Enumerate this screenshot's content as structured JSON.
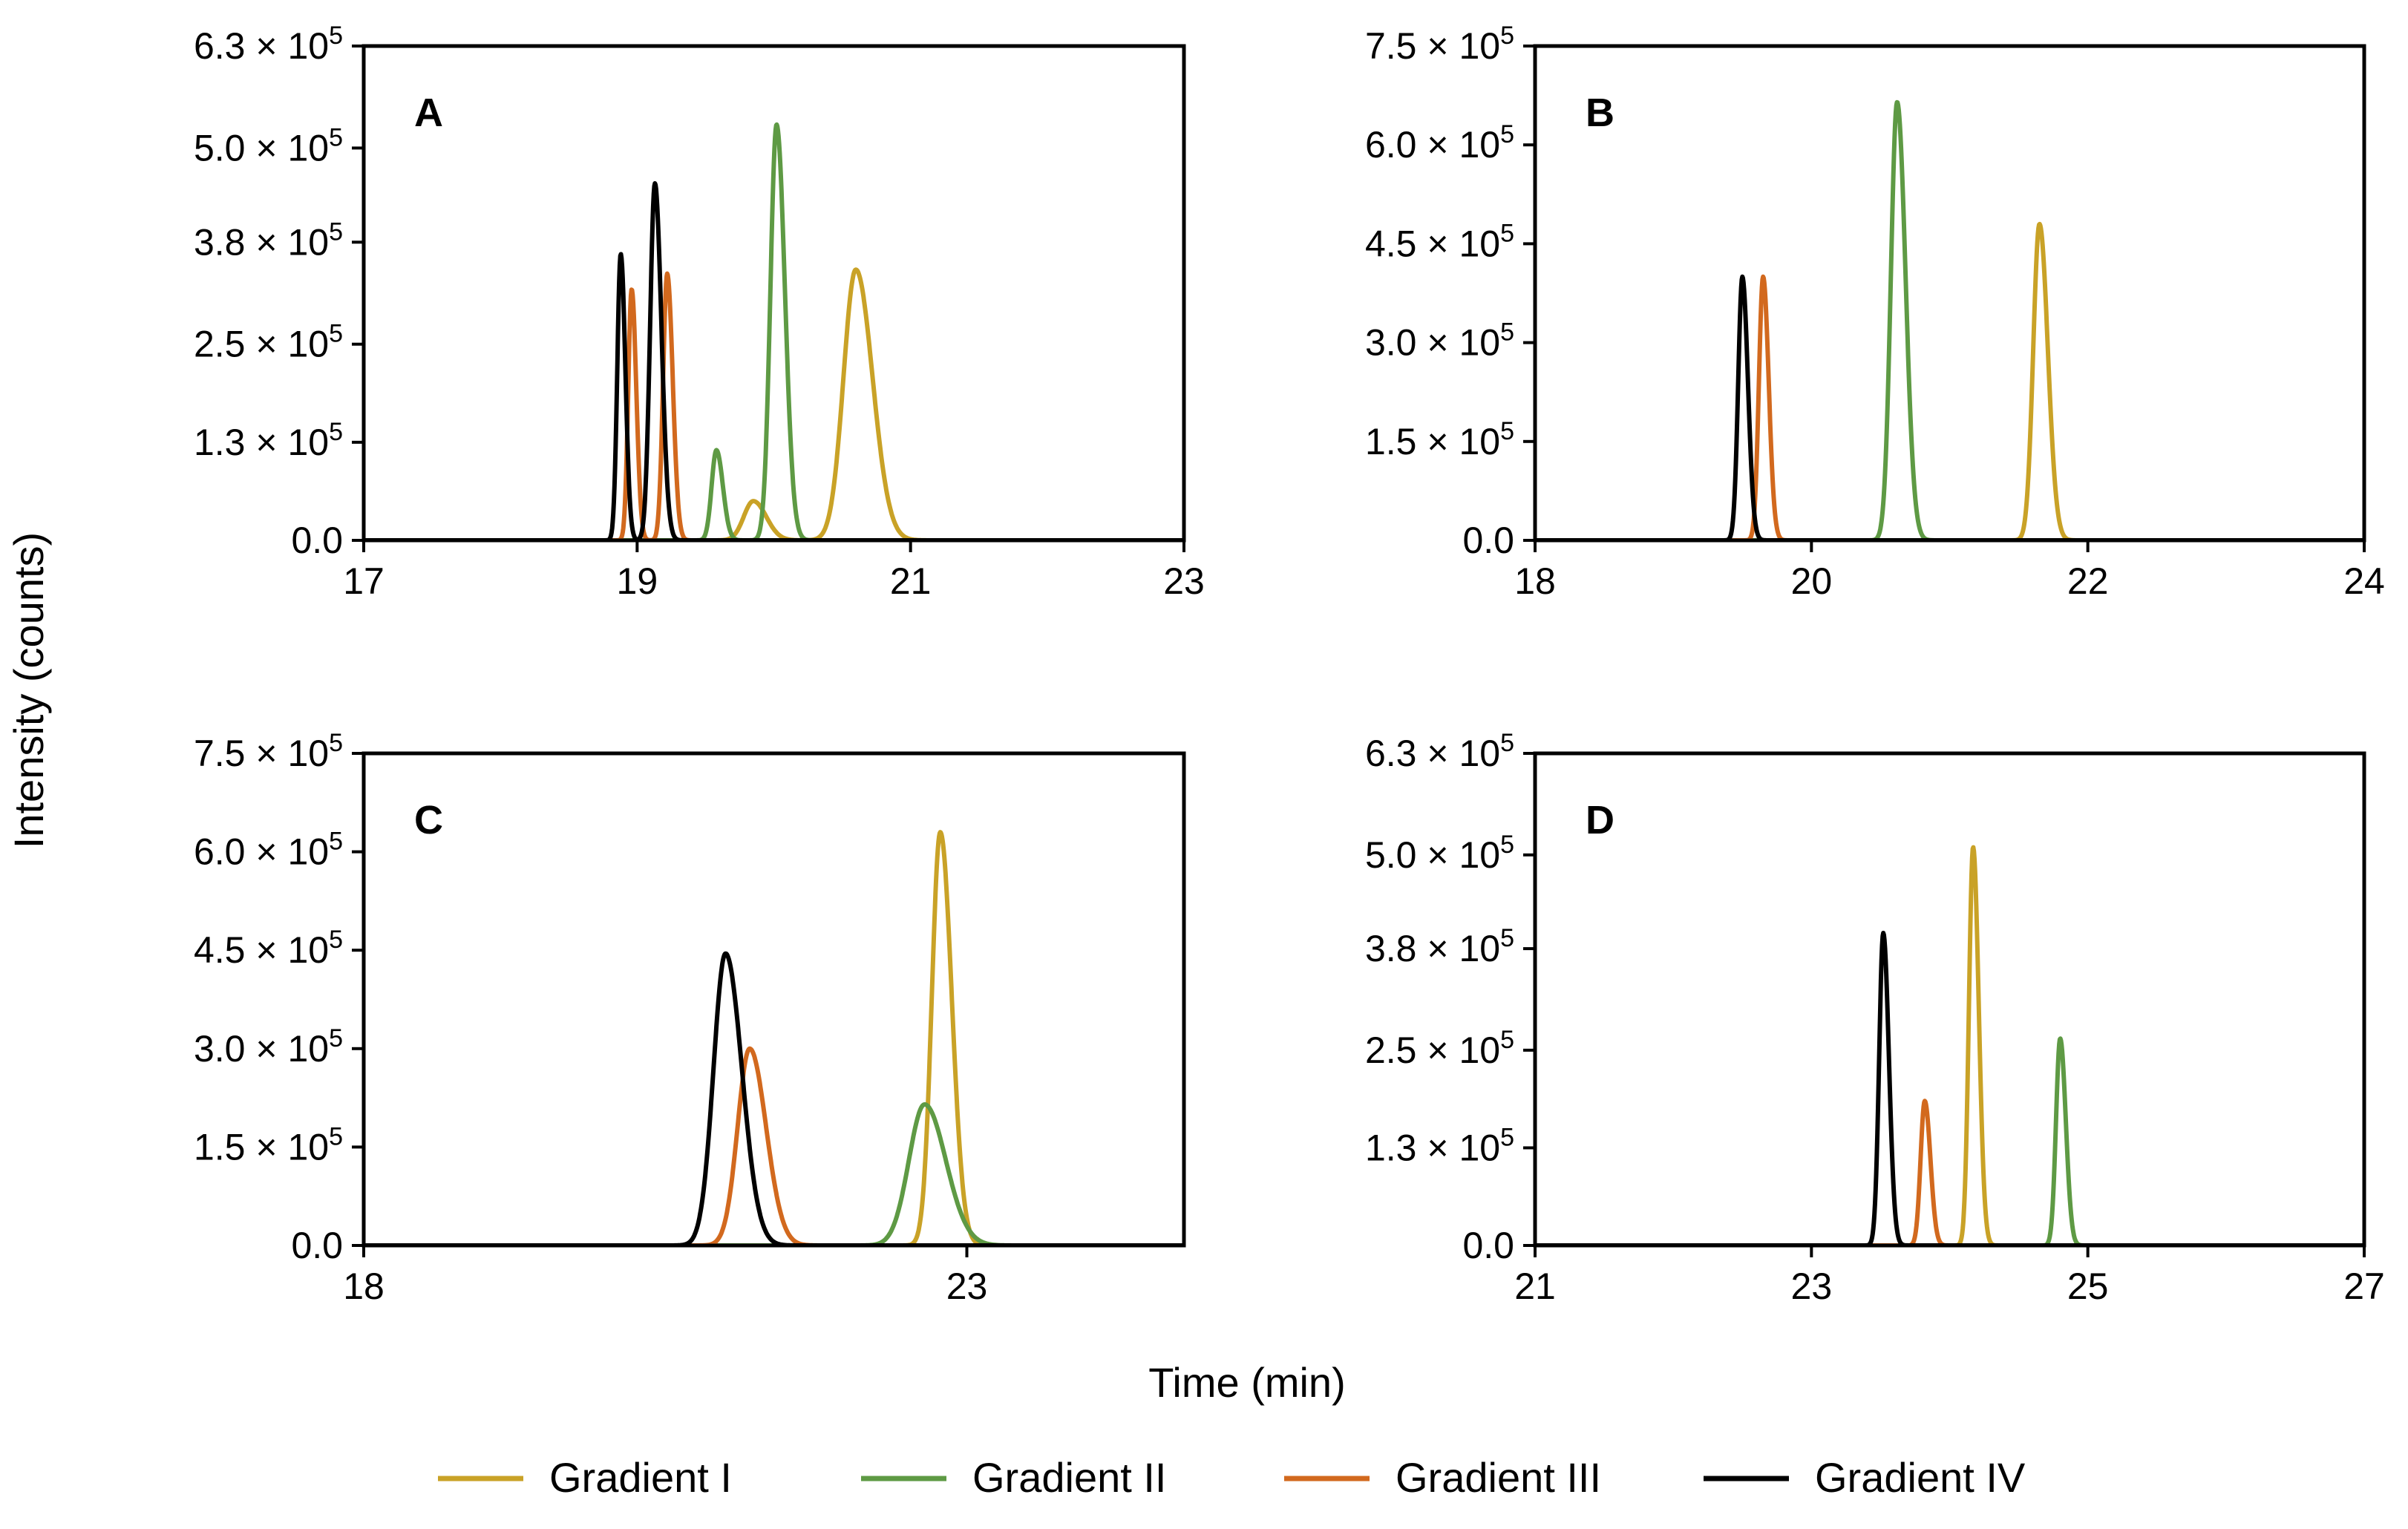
{
  "figure": {
    "ylabel": "Intensity (counts)",
    "xlabel": "Time (min)"
  },
  "legend": [
    {
      "name": "Gradient I",
      "color": "#C9A227"
    },
    {
      "name": "Gradient II",
      "color": "#5E9A44"
    },
    {
      "name": "Gradient III",
      "color": "#D2691E"
    },
    {
      "name": "Gradient IV",
      "color": "#000000"
    }
  ],
  "chart_data": [
    {
      "type": "line",
      "title": "A",
      "xlim": [
        17,
        23
      ],
      "xticks": [
        17,
        19,
        21,
        23
      ],
      "xtick_labels": [
        "17",
        "19",
        "21",
        "23"
      ],
      "ylim": [
        0,
        630000
      ],
      "yticks": [
        0,
        125000,
        250000,
        380000,
        500000,
        630000
      ],
      "ytick_labels": [
        {
          "mant": "0.0",
          "exp": ""
        },
        {
          "mant": "1.3",
          "exp": "5"
        },
        {
          "mant": "2.5",
          "exp": "5"
        },
        {
          "mant": "3.8",
          "exp": "5"
        },
        {
          "mant": "5.0",
          "exp": "5"
        },
        {
          "mant": "6.3",
          "exp": "5"
        }
      ],
      "series": [
        {
          "name": "Gradient I",
          "peaks": [
            [
              20.6,
              345000,
              0.09
            ],
            [
              19.85,
              50000,
              0.07
            ]
          ]
        },
        {
          "name": "Gradient II",
          "peaks": [
            [
              20.02,
              530000,
              0.045
            ],
            [
              19.58,
              115000,
              0.035
            ]
          ]
        },
        {
          "name": "Gradient III",
          "peaks": [
            [
              18.96,
              320000,
              0.025
            ],
            [
              19.22,
              340000,
              0.03
            ]
          ]
        },
        {
          "name": "Gradient IV",
          "peaks": [
            [
              18.88,
              365000,
              0.025
            ],
            [
              19.13,
              455000,
              0.035
            ]
          ]
        }
      ]
    },
    {
      "type": "line",
      "title": "B",
      "xlim": [
        18,
        24
      ],
      "xticks": [
        18,
        20,
        22,
        24
      ],
      "xtick_labels": [
        "18",
        "20",
        "22",
        "24"
      ],
      "ylim": [
        0,
        750000
      ],
      "yticks": [
        0,
        150000,
        300000,
        450000,
        600000,
        750000
      ],
      "ytick_labels": [
        {
          "mant": "0.0",
          "exp": ""
        },
        {
          "mant": "1.5",
          "exp": "5"
        },
        {
          "mant": "3.0",
          "exp": "5"
        },
        {
          "mant": "4.5",
          "exp": "5"
        },
        {
          "mant": "6.0",
          "exp": "5"
        },
        {
          "mant": "7.5",
          "exp": "5"
        }
      ],
      "series": [
        {
          "name": "Gradient I",
          "peaks": [
            [
              21.65,
              480000,
              0.045
            ]
          ]
        },
        {
          "name": "Gradient II",
          "peaks": [
            [
              20.62,
              665000,
              0.045
            ]
          ]
        },
        {
          "name": "Gradient III",
          "peaks": [
            [
              19.65,
              400000,
              0.03
            ]
          ]
        },
        {
          "name": "Gradient IV",
          "peaks": [
            [
              19.5,
              400000,
              0.03
            ]
          ]
        }
      ]
    },
    {
      "type": "line",
      "title": "C",
      "xlim": [
        18,
        24.8
      ],
      "xticks": [
        18,
        23
      ],
      "xtick_labels": [
        "18",
        "23"
      ],
      "ylim": [
        0,
        750000
      ],
      "yticks": [
        0,
        150000,
        300000,
        450000,
        600000,
        750000
      ],
      "ytick_labels": [
        {
          "mant": "0.0",
          "exp": ""
        },
        {
          "mant": "1.5",
          "exp": "5"
        },
        {
          "mant": "3.0",
          "exp": "5"
        },
        {
          "mant": "4.5",
          "exp": "5"
        },
        {
          "mant": "6.0",
          "exp": "5"
        },
        {
          "mant": "7.5",
          "exp": "5"
        }
      ],
      "series": [
        {
          "name": "Gradient I",
          "peaks": [
            [
              22.78,
              630000,
              0.07
            ]
          ]
        },
        {
          "name": "Gradient II",
          "peaks": [
            [
              22.65,
              215000,
              0.13
            ]
          ]
        },
        {
          "name": "Gradient III",
          "peaks": [
            [
              21.2,
              300000,
              0.1
            ]
          ]
        },
        {
          "name": "Gradient IV",
          "peaks": [
            [
              21.0,
              445000,
              0.1
            ]
          ]
        }
      ]
    },
    {
      "type": "line",
      "title": "D",
      "xlim": [
        21,
        27
      ],
      "xticks": [
        21,
        23,
        25,
        27
      ],
      "xtick_labels": [
        "21",
        "23",
        "25",
        "27"
      ],
      "ylim": [
        0,
        630000
      ],
      "yticks": [
        0,
        125000,
        250000,
        380000,
        500000,
        630000
      ],
      "ytick_labels": [
        {
          "mant": "0.0",
          "exp": ""
        },
        {
          "mant": "1.3",
          "exp": "5"
        },
        {
          "mant": "2.5",
          "exp": "5"
        },
        {
          "mant": "3.8",
          "exp": "5"
        },
        {
          "mant": "5.0",
          "exp": "5"
        },
        {
          "mant": "6.3",
          "exp": "5"
        }
      ],
      "series": [
        {
          "name": "Gradient I",
          "peaks": [
            [
              24.17,
              510000,
              0.03
            ]
          ]
        },
        {
          "name": "Gradient II",
          "peaks": [
            [
              24.8,
              265000,
              0.03
            ]
          ]
        },
        {
          "name": "Gradient III",
          "peaks": [
            [
              23.82,
              185000,
              0.03
            ]
          ]
        },
        {
          "name": "Gradient IV",
          "peaks": [
            [
              23.52,
              400000,
              0.03
            ]
          ]
        }
      ]
    }
  ]
}
